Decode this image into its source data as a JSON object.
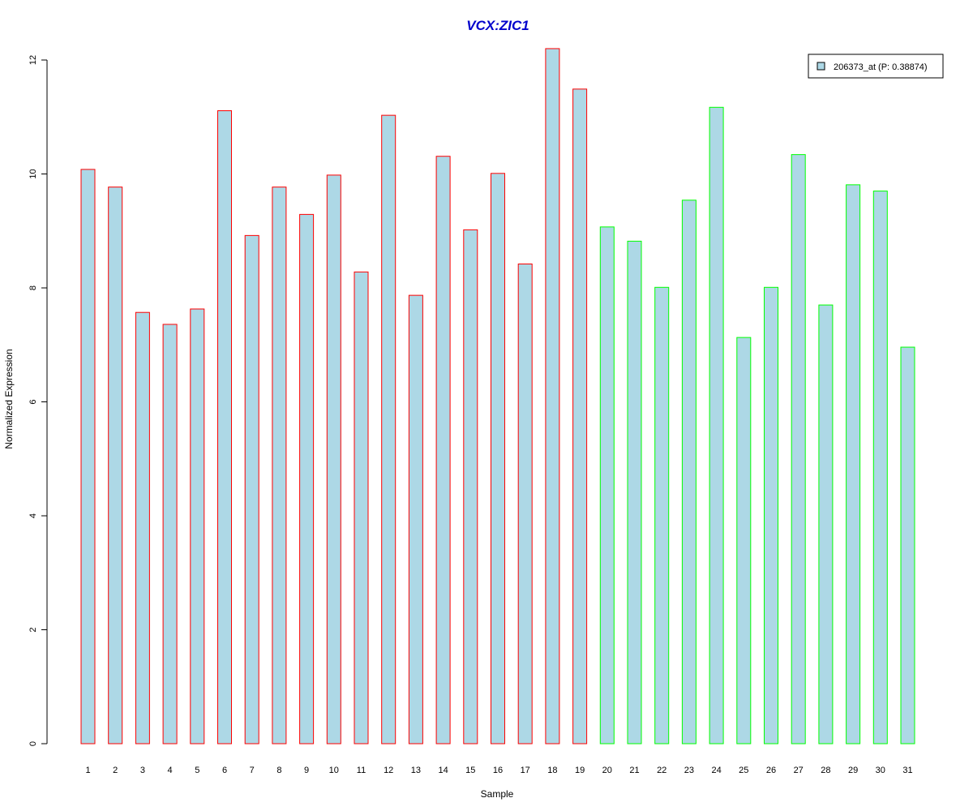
{
  "chart_data": {
    "type": "bar",
    "title": "VCX:ZIC1",
    "xlabel": "Sample",
    "ylabel": "Normalized Expression",
    "categories": [
      "1",
      "2",
      "3",
      "4",
      "5",
      "6",
      "7",
      "8",
      "9",
      "10",
      "11",
      "12",
      "13",
      "14",
      "15",
      "16",
      "17",
      "18",
      "19",
      "20",
      "21",
      "22",
      "23",
      "24",
      "25",
      "26",
      "27",
      "28",
      "29",
      "30",
      "31"
    ],
    "values": [
      10.08,
      9.77,
      7.57,
      7.36,
      7.63,
      11.11,
      8.92,
      9.77,
      9.29,
      9.98,
      8.28,
      11.03,
      7.87,
      10.31,
      9.02,
      10.01,
      8.42,
      12.2,
      11.49,
      9.07,
      8.82,
      8.01,
      9.54,
      11.17,
      7.13,
      8.01,
      10.34,
      7.7,
      9.81,
      9.7,
      6.96
    ],
    "bar_fill": "#ADD8E6",
    "groups": [
      {
        "from": 1,
        "to": 19,
        "border_color": "#FF0000"
      },
      {
        "from": 20,
        "to": 31,
        "border_color": "#00FF00"
      }
    ],
    "y_ticks": [
      "0",
      "2",
      "4",
      "6",
      "8",
      "10",
      "12"
    ],
    "ylim": [
      0,
      12
    ],
    "grid": false,
    "legend": {
      "entries": [
        {
          "label": "206373_at (P: 0.38874)",
          "fill": "#ADD8E6"
        }
      ],
      "placement": "top-right"
    },
    "title_color": "#0000CC"
  }
}
